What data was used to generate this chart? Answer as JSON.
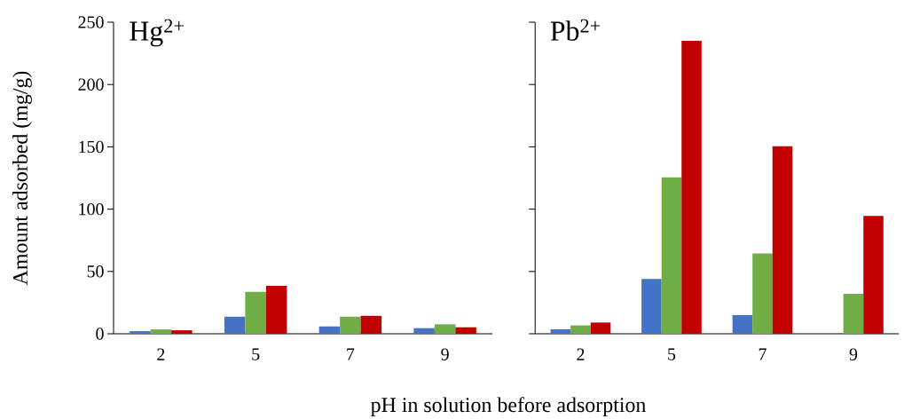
{
  "chart_data": [
    {
      "type": "bar",
      "title": "Hg$^{2+}$",
      "xlabel": "pH in solution before adsorption",
      "ylabel": "Amount adsorbed (mg/g)",
      "categories": [
        "2",
        "5",
        "7",
        "9"
      ],
      "series": [
        {
          "color": "#4472c4",
          "values": [
            2.1,
            13.7,
            5.9,
            4.5
          ]
        },
        {
          "color": "#70ad47",
          "values": [
            3.5,
            33.6,
            13.7,
            7.6
          ]
        },
        {
          "color": "#c00000",
          "values": [
            2.8,
            38.5,
            14.4,
            5.2
          ]
        }
      ],
      "ylim": [
        0,
        250
      ],
      "yticks": [
        0,
        50,
        100,
        150,
        200,
        250
      ]
    },
    {
      "type": "bar",
      "title": "Pb$^{2+}$",
      "categories": [
        "2",
        "5",
        "7",
        "9"
      ],
      "series": [
        {
          "color": "#4472c4",
          "values": [
            3.6,
            44,
            15,
            null
          ]
        },
        {
          "color": "#70ad47",
          "values": [
            6.7,
            125.5,
            64.5,
            32
          ]
        },
        {
          "color": "#c00000",
          "values": [
            9,
            235,
            150.5,
            94.5
          ]
        }
      ],
      "ylim": [
        0,
        250
      ],
      "yticks": [
        0,
        50,
        100,
        150,
        200,
        250
      ],
      "tick_labels": "x"
    }
  ]
}
